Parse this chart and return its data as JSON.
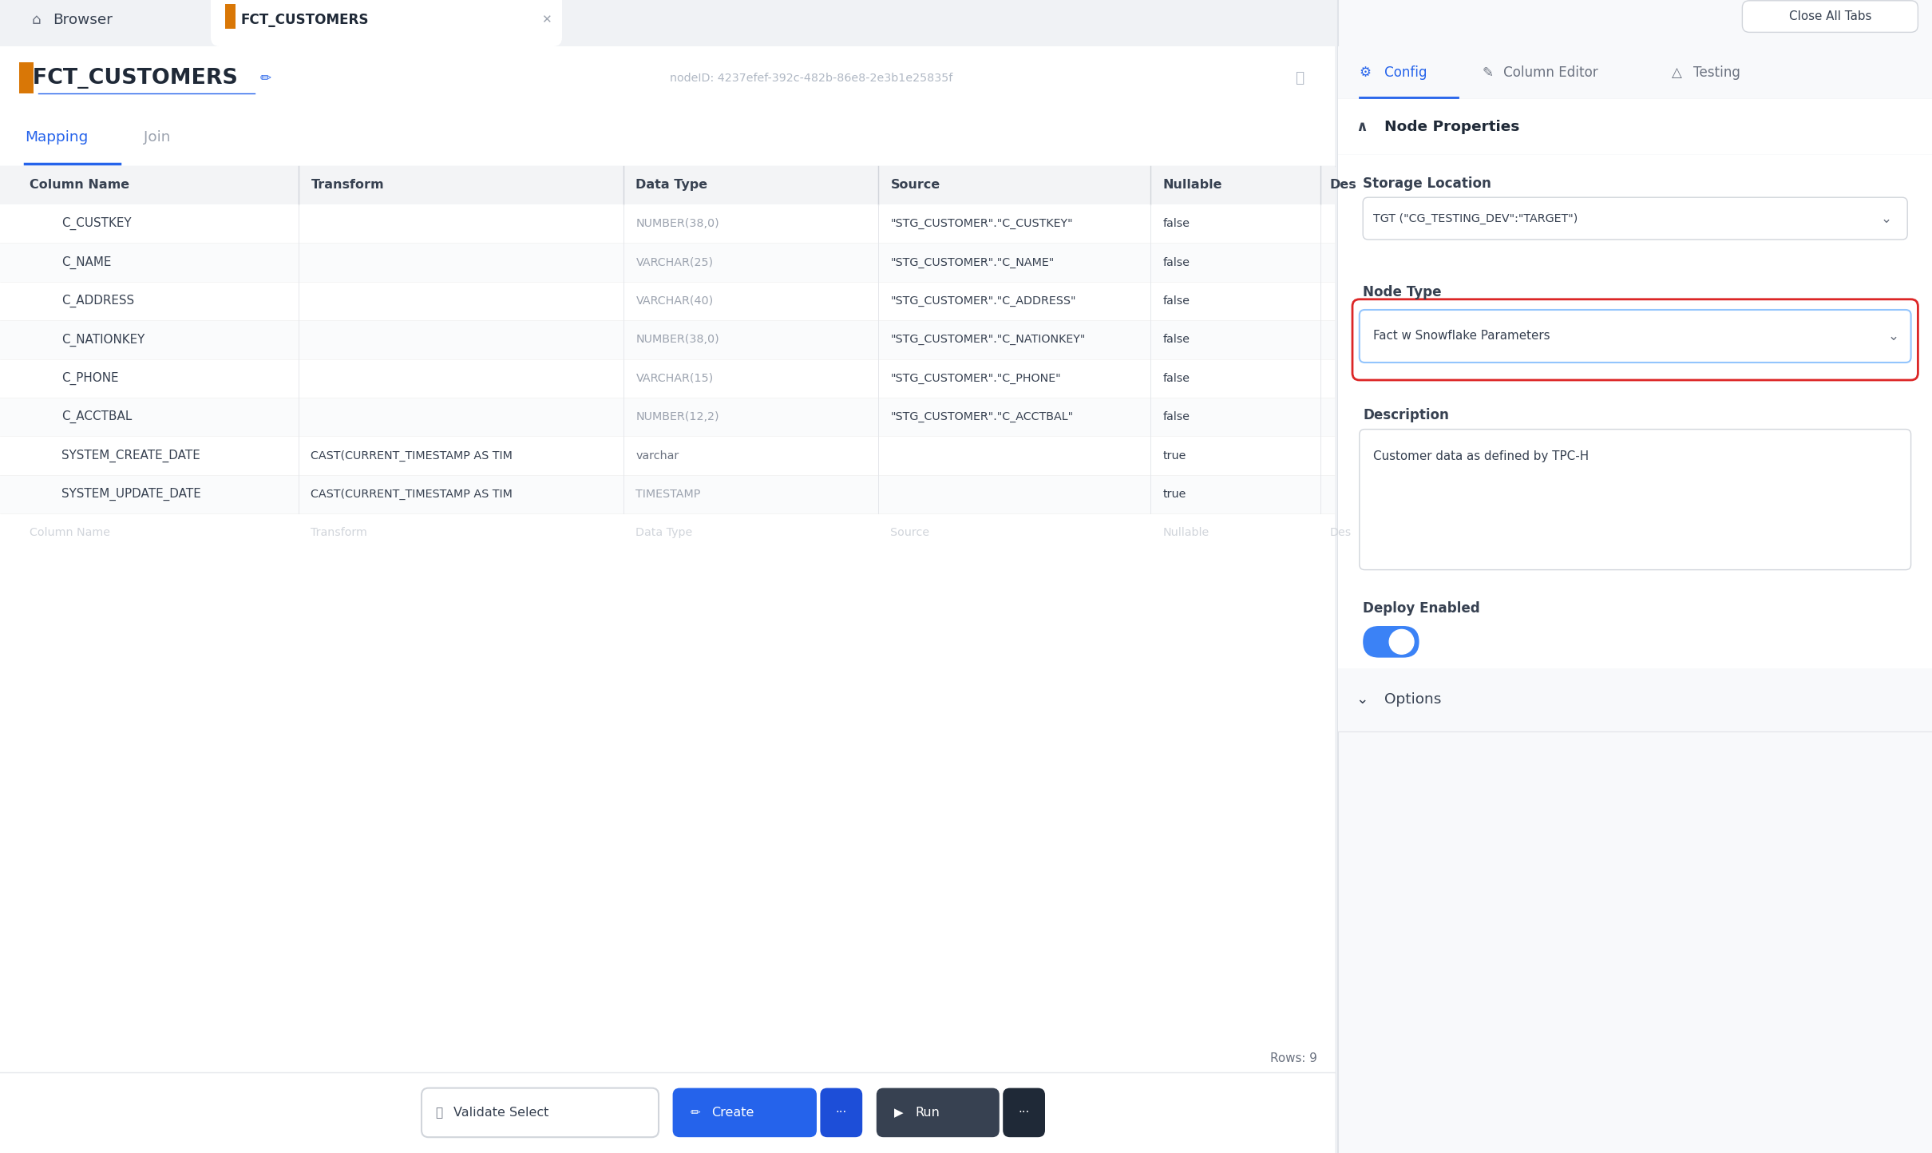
{
  "bg_color": "#f0f2f5",
  "white": "#ffffff",
  "panel_bg": "#f8f9fb",
  "table_header_bg": "#f3f4f6",
  "border_color": "#e5e7eb",
  "text_dark": "#1f2937",
  "text_medium": "#374151",
  "text_gray": "#9ca3af",
  "text_light_gray": "#6b7280",
  "text_blue": "#2563eb",
  "icon_orange": "#d97706",
  "node_type_border": "#dc2626",
  "toggle_bg": "#3b82f6",
  "node_type_text": "Fact w Snowflake Parameters",
  "storage_location_text": "TGT (\"CG_TESTING_DEV\":\"TARGET\")",
  "description_text": "Customer data as defined by TPC-H",
  "title_text": "FCT_CUSTOMERS",
  "nodeid_text": "nodeID: 4237efef-392c-482b-86e8-2e3b1e25835f",
  "columns": [
    {
      "name": "C_CUSTKEY",
      "transform": "",
      "data_type": "NUMBER(38,0)",
      "source": "\"STG_CUSTOMER\".\"C_CUSTKEY\"",
      "nullable": "false"
    },
    {
      "name": "C_NAME",
      "transform": "",
      "data_type": "VARCHAR(25)",
      "source": "\"STG_CUSTOMER\".\"C_NAME\"",
      "nullable": "false"
    },
    {
      "name": "C_ADDRESS",
      "transform": "",
      "data_type": "VARCHAR(40)",
      "source": "\"STG_CUSTOMER\".\"C_ADDRESS\"",
      "nullable": "false"
    },
    {
      "name": "C_NATIONKEY",
      "transform": "",
      "data_type": "NUMBER(38,0)",
      "source": "\"STG_CUSTOMER\".\"C_NATIONKEY\"",
      "nullable": "false"
    },
    {
      "name": "C_PHONE",
      "transform": "",
      "data_type": "VARCHAR(15)",
      "source": "\"STG_CUSTOMER\".\"C_PHONE\"",
      "nullable": "false"
    },
    {
      "name": "C_ACCTBAL",
      "transform": "",
      "data_type": "NUMBER(12,2)",
      "source": "\"STG_CUSTOMER\".\"C_ACCTBAL\"",
      "nullable": "false"
    },
    {
      "name": "SYSTEM_CREATE_DATE",
      "transform": "CAST(CURRENT_TIMESTAMP AS TIM",
      "data_type": "varchar",
      "source": "",
      "nullable": "true"
    },
    {
      "name": "SYSTEM_UPDATE_DATE",
      "transform": "CAST(CURRENT_TIMESTAMP AS TIM",
      "data_type": "TIMESTAMP",
      "source": "",
      "nullable": "true"
    }
  ],
  "col_headers": [
    "Column Name",
    "Transform",
    "Data Type",
    "Source",
    "Nullable",
    "Des"
  ],
  "col_x_abs": [
    15,
    175,
    360,
    505,
    660,
    755
  ],
  "col_sep_x": [
    170,
    355,
    500,
    655,
    752
  ],
  "rows_count": 9,
  "scale": 2.2
}
